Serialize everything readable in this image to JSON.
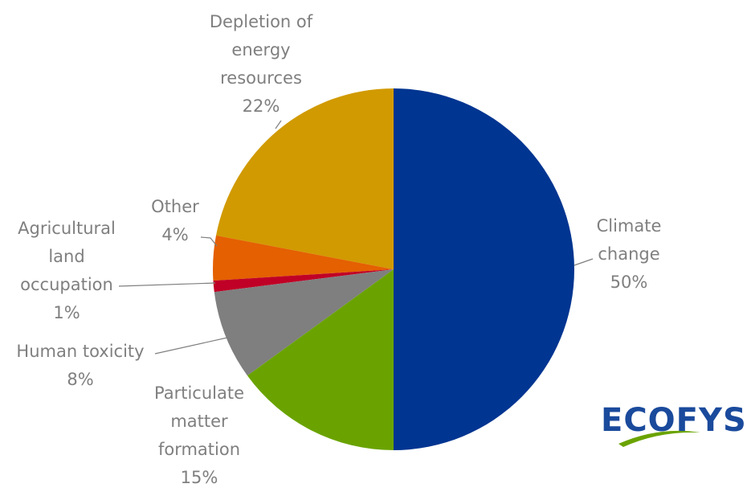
{
  "chart_data": {
    "type": "pie",
    "categories": [
      "Climate change",
      "Particulate matter formation",
      "Human toxicity",
      "Agricultural land occupation",
      "Other",
      "Depletion of energy resources"
    ],
    "values": [
      50,
      15,
      8,
      1,
      4,
      22
    ],
    "value_labels": [
      "50%",
      "15%",
      "8%",
      "1%",
      "4%",
      "22%"
    ],
    "colors": [
      "#003591",
      "#6aa300",
      "#7f7f7f",
      "#c00026",
      "#e46000",
      "#d19a00"
    ]
  },
  "logo": "ECOFYS"
}
